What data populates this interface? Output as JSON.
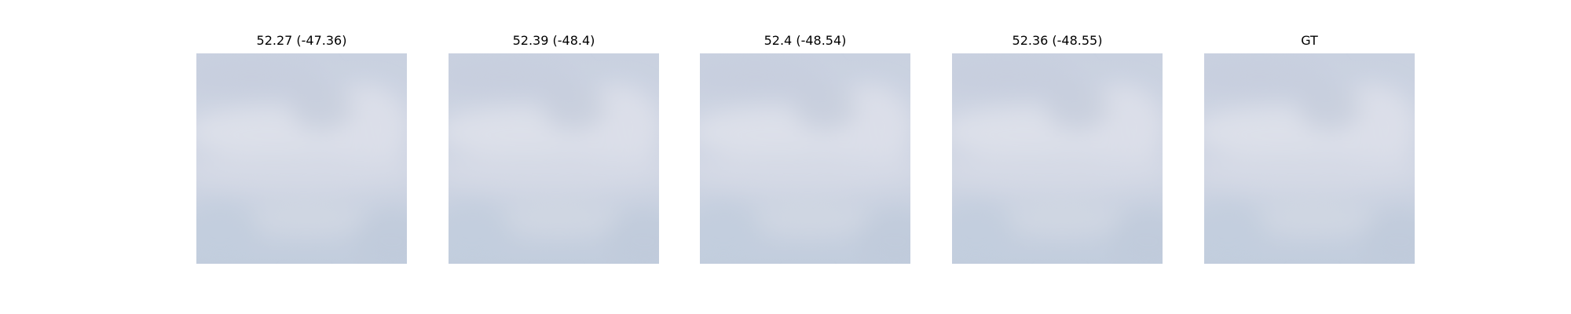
{
  "figure": {
    "panels": [
      {
        "title": "52.27 (-47.36)"
      },
      {
        "title": "52.39 (-48.4)"
      },
      {
        "title": "52.4 (-48.54)"
      },
      {
        "title": "52.36 (-48.55)"
      },
      {
        "title": "GT"
      }
    ]
  },
  "colors": {
    "background": "#ffffff",
    "sky_base": "#c9d1e0",
    "cloud_light": "#dde0ea",
    "sky_bottom": "#c2cddd"
  }
}
